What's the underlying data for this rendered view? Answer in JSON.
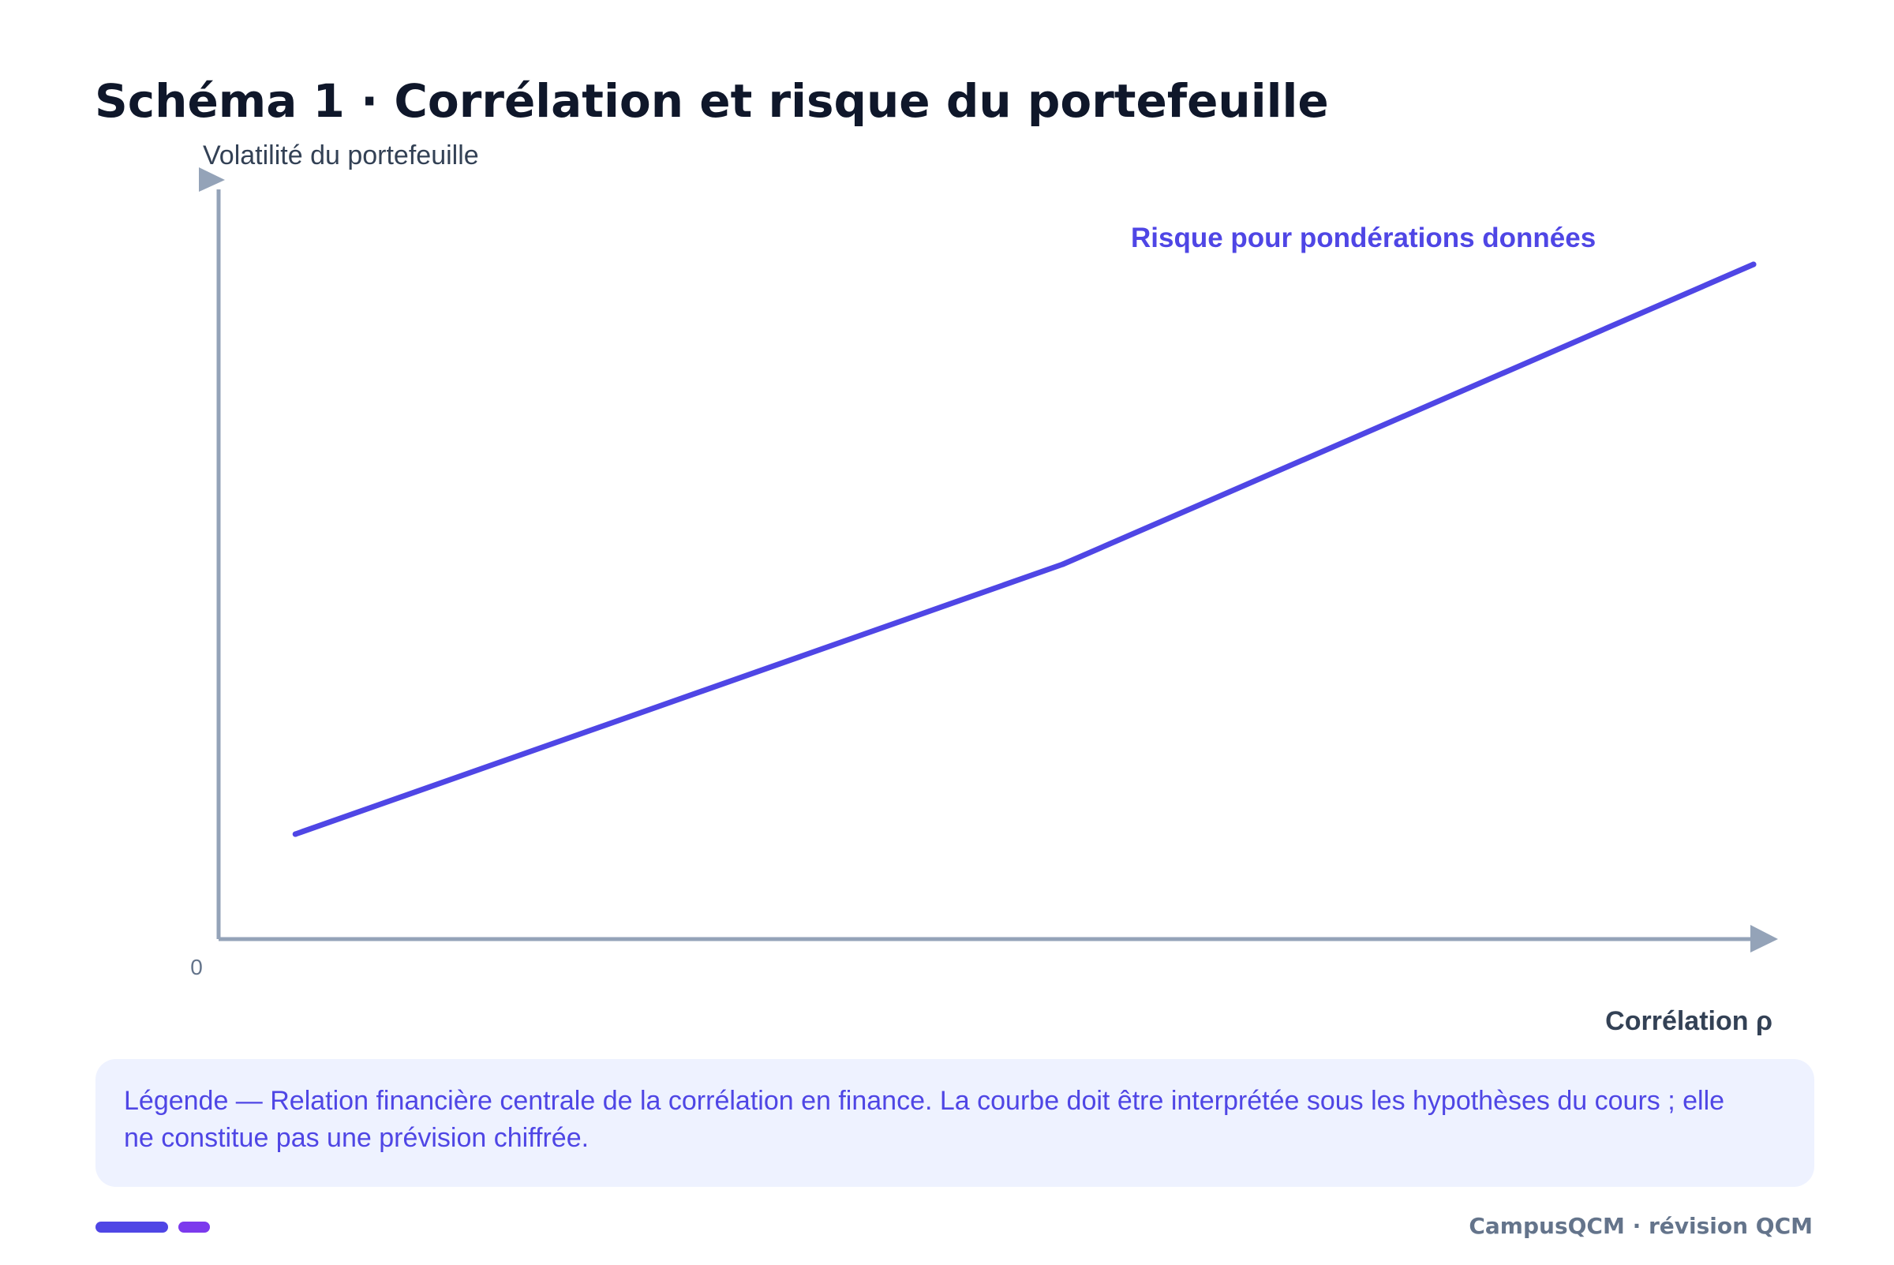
{
  "title": "Schéma 1 · Corrélation et risque du portefeuille",
  "colors": {
    "accent": "#4f46e5",
    "axis": "#94a3b8",
    "title": "#0f172a",
    "legend_bg": "#eef2ff",
    "pill_secondary": "#7c3aed"
  },
  "chart_data": {
    "type": "line",
    "ylabel": "Volatilité du portefeuille",
    "xlabel": "Corrélation ρ",
    "origin_label": "0",
    "grid": false,
    "xlim": [
      -1,
      1
    ],
    "ylim": [
      0,
      1
    ],
    "series": [
      {
        "name": "Risque pour pondérations données",
        "x": [
          -0.9,
          0.1,
          1.0
        ],
        "y": [
          0.14,
          0.5,
          0.9
        ]
      }
    ]
  },
  "legend": {
    "text": "Légende — Relation financière centrale de la corrélation en finance. La courbe doit être interprétée sous les hypothèses du cours ; elle ne constitue pas une prévision chiffrée."
  },
  "footer": {
    "brand": "CampusQCM · révision QCM"
  }
}
